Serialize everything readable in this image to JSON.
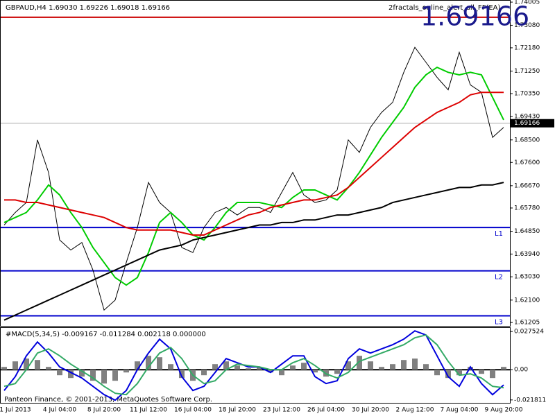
{
  "header": {
    "symbol_info": "GBPAUD,H4  1.69030 1.69226 1.69018 1.69166",
    "ea_name": "2fractals_online_alert_all_FF(EA)",
    "footer": "Panteon Finance, © 2001-2013, MetaQuotes Software Corp."
  },
  "chart_data": [
    {
      "type": "line",
      "categories": [
        null,
        "1 Jul 2013",
        null,
        null,
        null,
        "4 Jul 04:00",
        null,
        null,
        null,
        "8 Jul 20:00",
        null,
        null,
        null,
        "11 Jul 12:00",
        null,
        null,
        null,
        "16 Jul 04:00",
        null,
        null,
        null,
        "18 Jul 20:00",
        null,
        null,
        null,
        "23 Jul 12:00",
        null,
        null,
        null,
        "26 Jul 04:00",
        null,
        null,
        null,
        "30 Jul 20:00",
        null,
        null,
        null,
        "2 Aug 12:00",
        null,
        null,
        null,
        "7 Aug 04:00",
        null,
        null,
        null,
        "9 Aug 20:00"
      ],
      "series": [
        {
          "color": "#000000",
          "values": [
            1.651,
            1.656,
            1.66,
            1.685,
            1.672,
            1.645,
            1.641,
            1.644,
            1.633,
            1.617,
            1.621,
            1.636,
            1.65,
            1.668,
            1.66,
            1.656,
            1.642,
            1.64,
            1.65,
            1.656,
            1.658,
            1.655,
            1.658,
            1.658,
            1.656,
            1.664,
            1.672,
            1.663,
            1.66,
            1.661,
            1.665,
            1.685,
            1.68,
            1.69,
            1.696,
            1.7,
            1.712,
            1.722,
            1.716,
            1.71,
            1.705,
            1.72,
            1.707,
            1.704,
            1.686,
            1.69
          ]
        },
        {
          "color": "#00cc00",
          "values": [
            1.652,
            1.654,
            1.656,
            1.661,
            1.667,
            1.663,
            1.656,
            1.65,
            1.642,
            1.636,
            1.63,
            1.627,
            1.63,
            1.64,
            1.652,
            1.656,
            1.652,
            1.647,
            1.645,
            1.65,
            1.656,
            1.66,
            1.66,
            1.66,
            1.659,
            1.658,
            1.662,
            1.665,
            1.665,
            1.663,
            1.661,
            1.666,
            1.672,
            1.679,
            1.686,
            1.692,
            1.698,
            1.706,
            1.711,
            1.714,
            1.712,
            1.711,
            1.712,
            1.711,
            1.702,
            1.693
          ]
        },
        {
          "color": "#dd0000",
          "values": [
            1.661,
            1.661,
            1.66,
            1.66,
            1.659,
            1.658,
            1.657,
            1.656,
            1.655,
            1.654,
            1.652,
            1.65,
            1.649,
            1.649,
            1.649,
            1.649,
            1.648,
            1.647,
            1.647,
            1.649,
            1.651,
            1.653,
            1.655,
            1.656,
            1.658,
            1.659,
            1.66,
            1.661,
            1.661,
            1.662,
            1.663,
            1.666,
            1.67,
            1.674,
            1.678,
            1.682,
            1.686,
            1.69,
            1.693,
            1.696,
            1.698,
            1.7,
            1.703,
            1.704,
            1.704,
            1.704
          ]
        },
        {
          "color": "#000000",
          "values": [
            1.613,
            1.615,
            1.617,
            1.619,
            1.621,
            1.623,
            1.625,
            1.627,
            1.629,
            1.631,
            1.633,
            1.635,
            1.637,
            1.639,
            1.641,
            1.642,
            1.643,
            1.645,
            1.646,
            1.647,
            1.648,
            1.649,
            1.65,
            1.651,
            1.651,
            1.652,
            1.652,
            1.653,
            1.653,
            1.654,
            1.655,
            1.655,
            1.656,
            1.657,
            1.658,
            1.66,
            1.661,
            1.662,
            1.663,
            1.664,
            1.665,
            1.666,
            1.666,
            1.667,
            1.667,
            1.668
          ]
        }
      ],
      "levels": [
        {
          "value": 1.734,
          "color": "#cc0000"
        },
        {
          "label": "L1",
          "value": 1.65,
          "color": "#0000cc"
        },
        {
          "label": "L2",
          "value": 1.6327,
          "color": "#0000cc"
        },
        {
          "label": "L3",
          "value": 1.6147,
          "color": "#0000cc"
        }
      ],
      "current_price": 1.69166,
      "ylim": [
        1.6107,
        1.7409
      ],
      "yticks": [
        1.74005,
        {
          "value": 1.7308,
          "label": "1.73080"
        },
        {
          "value": 1.7218,
          "label": "1.72180"
        },
        {
          "value": 1.7125,
          "label": "1.71250"
        },
        {
          "value": 1.7035,
          "label": "1.70350"
        },
        {
          "value": 1.6943,
          "label": "1.69430"
        },
        {
          "value": 1.685,
          "label": "1.68500"
        },
        {
          "value": 1.676,
          "label": "1.67600"
        },
        {
          "value": 1.6667,
          "label": "1.66670"
        },
        {
          "value": 1.6578,
          "label": "1.65780"
        },
        {
          "value": 1.6485,
          "label": "1.64850"
        },
        {
          "value": 1.6394,
          "label": "1.63940"
        },
        {
          "value": 1.6303,
          "label": "1.63030"
        },
        {
          "value": 1.621,
          "label": "1.62100"
        },
        1.61205
      ]
    },
    {
      "type": "macd",
      "title": "#MACD(5,34,5) -0.009167 -0.011284 0.002118 0.000000",
      "series": [
        {
          "color": "#808080",
          "values": [
            0.002,
            0.006,
            0.008,
            0.007,
            0.002,
            -0.004,
            -0.006,
            -0.005,
            -0.008,
            -0.01,
            -0.008,
            -0.002,
            0.006,
            0.01,
            0.009,
            0.004,
            -0.006,
            -0.008,
            -0.004,
            0.004,
            0.006,
            0.003,
            0.001,
            0.002,
            -0.002,
            -0.004,
            0.003,
            0.005,
            -0.002,
            -0.005,
            -0.003,
            0.006,
            0.01,
            0.006,
            0.002,
            0.004,
            0.007,
            0.008,
            0.004,
            -0.004,
            -0.006,
            -0.004,
            0.002,
            -0.003,
            -0.006,
            0.002
          ]
        },
        {
          "color": "#0000dd",
          "values": [
            -0.015,
            -0.005,
            0.01,
            0.02,
            0.012,
            0.002,
            -0.002,
            -0.006,
            -0.012,
            -0.018,
            -0.022,
            -0.015,
            0.0,
            0.012,
            0.022,
            0.015,
            -0.005,
            -0.015,
            -0.012,
            -0.002,
            0.008,
            0.005,
            0.002,
            0.002,
            -0.002,
            0.004,
            0.01,
            0.01,
            -0.005,
            -0.01,
            -0.008,
            0.008,
            0.015,
            0.012,
            0.015,
            0.018,
            0.022,
            0.028,
            0.025,
            0.01,
            -0.005,
            -0.012,
            0.002,
            -0.01,
            -0.018,
            -0.011
          ]
        },
        {
          "color": "#33aa66",
          "values": [
            -0.012,
            -0.01,
            0.0,
            0.012,
            0.015,
            0.01,
            0.004,
            -0.001,
            -0.006,
            -0.012,
            -0.017,
            -0.018,
            -0.01,
            0.002,
            0.012,
            0.016,
            0.008,
            -0.004,
            -0.01,
            -0.008,
            0.0,
            0.004,
            0.003,
            0.002,
            0.0,
            0.0,
            0.005,
            0.008,
            0.003,
            -0.003,
            -0.006,
            -0.002,
            0.006,
            0.009,
            0.012,
            0.015,
            0.018,
            0.023,
            0.025,
            0.018,
            0.006,
            -0.004,
            -0.003,
            -0.006,
            -0.012,
            -0.013
          ]
        }
      ],
      "ylim": [
        -0.0244,
        0.0306
      ],
      "yticks": [
        0.027524,
        {
          "value": 0,
          "label": "0.00"
        },
        -0.021811
      ]
    }
  ]
}
